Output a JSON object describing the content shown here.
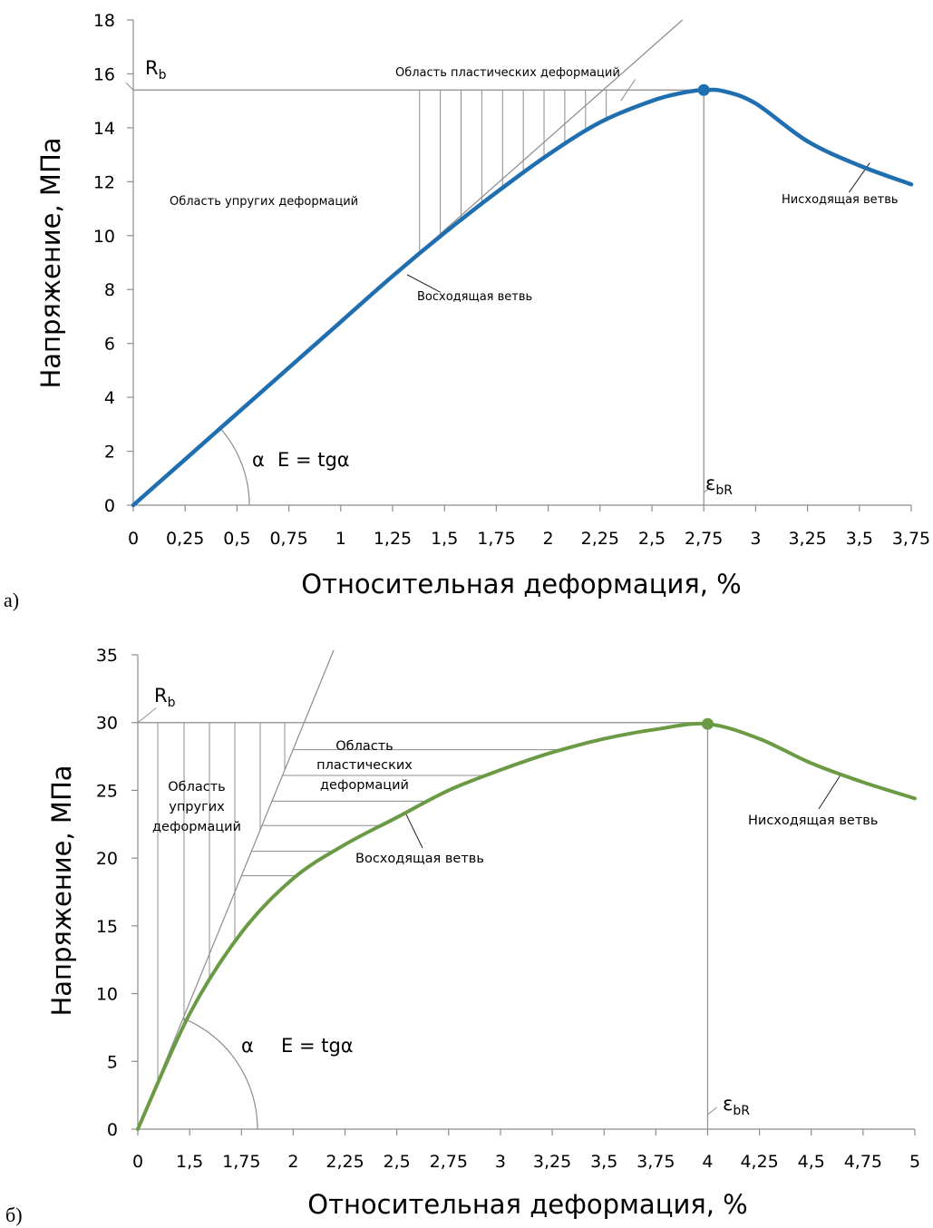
{
  "chart_data": [
    {
      "type": "line",
      "panel_label": "а)",
      "xlabel": "Относительная деформация, %",
      "ylabel": "Напряжение, МПа",
      "xlim": [
        0,
        3.75
      ],
      "ylim": [
        0,
        18
      ],
      "x_ticks": [
        "0",
        "0,25",
        "0,5",
        "0,75",
        "1",
        "1,25",
        "1,5",
        "1,75",
        "2",
        "2,25",
        "2,5",
        "2,75",
        "3",
        "3,25",
        "3,5",
        "3,75"
      ],
      "y_ticks": [
        "0",
        "2",
        "4",
        "6",
        "8",
        "10",
        "12",
        "14",
        "16",
        "18"
      ],
      "series": [
        {
          "color": "#1F6FB0",
          "x": [
            0,
            0.25,
            0.5,
            0.75,
            1,
            1.25,
            1.5,
            1.75,
            2,
            2.25,
            2.5,
            2.65,
            2.75,
            2.85,
            3,
            3.25,
            3.5,
            3.75
          ],
          "y": [
            0,
            1.7,
            3.4,
            5.1,
            6.8,
            8.5,
            10.1,
            11.6,
            13.0,
            14.2,
            15.0,
            15.3,
            15.4,
            15.35,
            14.9,
            13.5,
            12.6,
            11.9
          ]
        }
      ],
      "peak": {
        "x": 2.75,
        "y": 15.4
      },
      "tangent_slope": 6.8,
      "annotations": {
        "rb": "R",
        "rb_sub": "b",
        "eps": "ε",
        "eps_sub": "bR",
        "alpha": "α",
        "modulus": "E = tgα",
        "plastic": "Область пластических деформаций",
        "elastic": "Область упругих деформаций",
        "ascending": "Восходящая ветвь",
        "descending": "Нисходящая ветвь"
      }
    },
    {
      "type": "line",
      "panel_label": "б)",
      "xlabel": "Относительная деформация, %",
      "ylabel": "Напряжение, МПа",
      "ylim": [
        0,
        35
      ],
      "x_ticks": [
        "0",
        "1,5",
        "1,75",
        "2",
        "2,25",
        "2,5",
        "2,75",
        "3",
        "3,25",
        "3,5",
        "3,75",
        "4",
        "4,25",
        "4,5",
        "4,75",
        "5"
      ],
      "y_ticks": [
        "0",
        "5",
        "10",
        "15",
        "20",
        "25",
        "30",
        "35"
      ],
      "series": [
        {
          "color": "#6B9A44",
          "x": [
            0,
            1.5,
            1.75,
            2,
            2.25,
            2.5,
            2.75,
            3,
            3.25,
            3.5,
            3.75,
            4,
            4.25,
            4.5,
            4.75,
            5
          ],
          "y": [
            0,
            8.5,
            14.5,
            18.5,
            21.0,
            23.0,
            25.0,
            26.5,
            27.8,
            28.8,
            29.5,
            29.9,
            28.8,
            27.0,
            25.6,
            24.4
          ]
        }
      ],
      "peak": {
        "x": 4,
        "y": 29.9
      },
      "annotations": {
        "rb": "R",
        "rb_sub": "b",
        "eps": "ε",
        "eps_sub": "bR",
        "alpha": "α",
        "modulus": "E = tgα",
        "plastic": [
          "Область",
          "пластических",
          "деформаций"
        ],
        "elastic": [
          "Область",
          "упругих",
          "деформаций"
        ],
        "ascending": "Восходящая ветвь",
        "descending": "Нисходящая ветвь"
      }
    }
  ]
}
